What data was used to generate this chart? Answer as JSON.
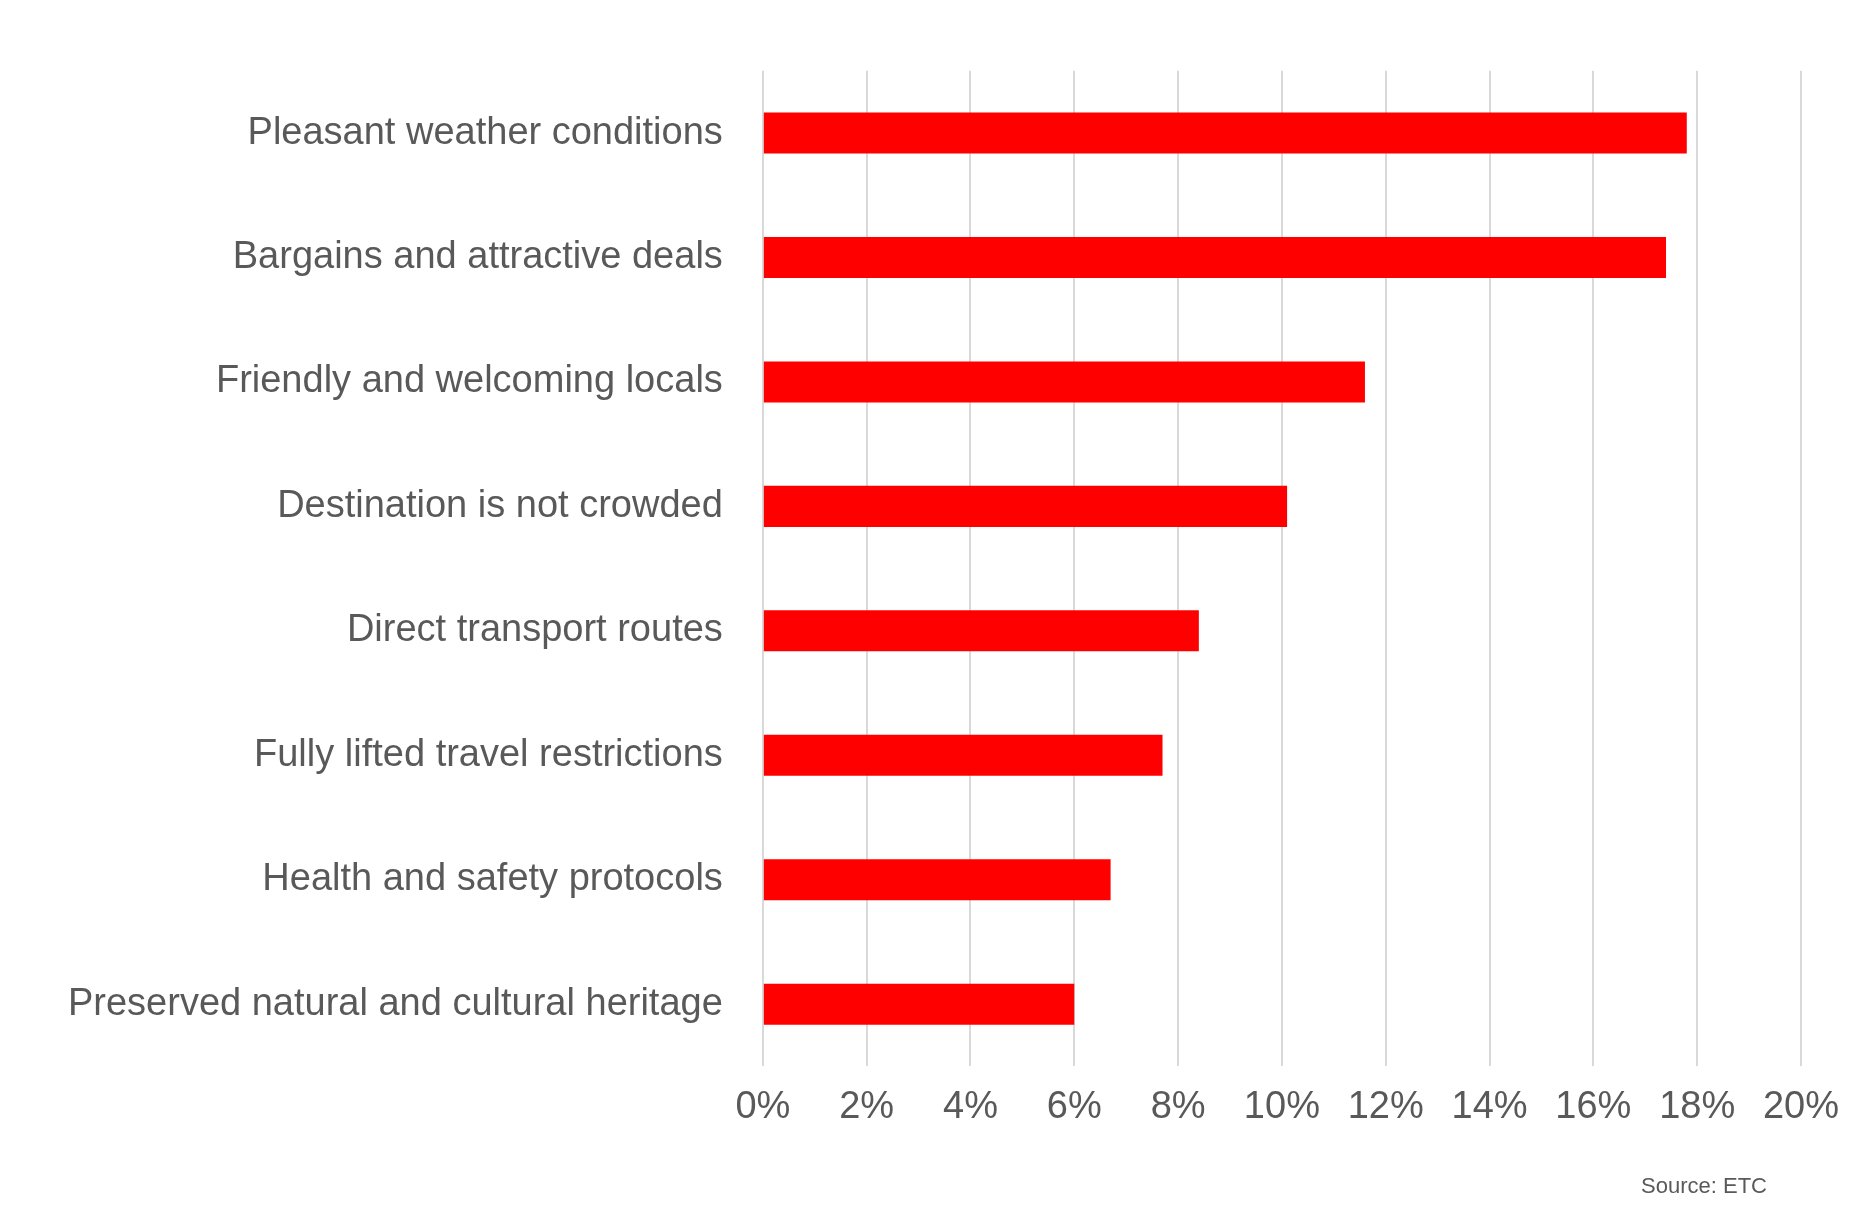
{
  "chart_data": {
    "type": "bar",
    "orientation": "horizontal",
    "categories": [
      "Pleasant weather conditions",
      "Bargains and attractive deals",
      "Friendly and welcoming locals",
      "Destination is not crowded",
      "Direct transport routes",
      "Fully lifted travel restrictions",
      "Health and safety protocols",
      "Preserved natural and cultural heritage"
    ],
    "values": [
      17.8,
      17.4,
      11.6,
      10.1,
      8.4,
      7.7,
      6.7,
      6.0
    ],
    "color": "#ff0000",
    "xlim": [
      0,
      20
    ],
    "xticks": [
      {
        "value": 0,
        "label": "0%"
      },
      {
        "value": 2,
        "label": "2%"
      },
      {
        "value": 4,
        "label": "4%"
      },
      {
        "value": 6,
        "label": "6%"
      },
      {
        "value": 8,
        "label": "8%"
      },
      {
        "value": 10,
        "label": "10%"
      },
      {
        "value": 12,
        "label": "12%"
      },
      {
        "value": 14,
        "label": "14%"
      },
      {
        "value": 16,
        "label": "16%"
      },
      {
        "value": 18,
        "label": "18%"
      },
      {
        "value": 20,
        "label": "20%"
      }
    ],
    "grid": "x",
    "annotations": [
      "Source: ETC"
    ]
  }
}
